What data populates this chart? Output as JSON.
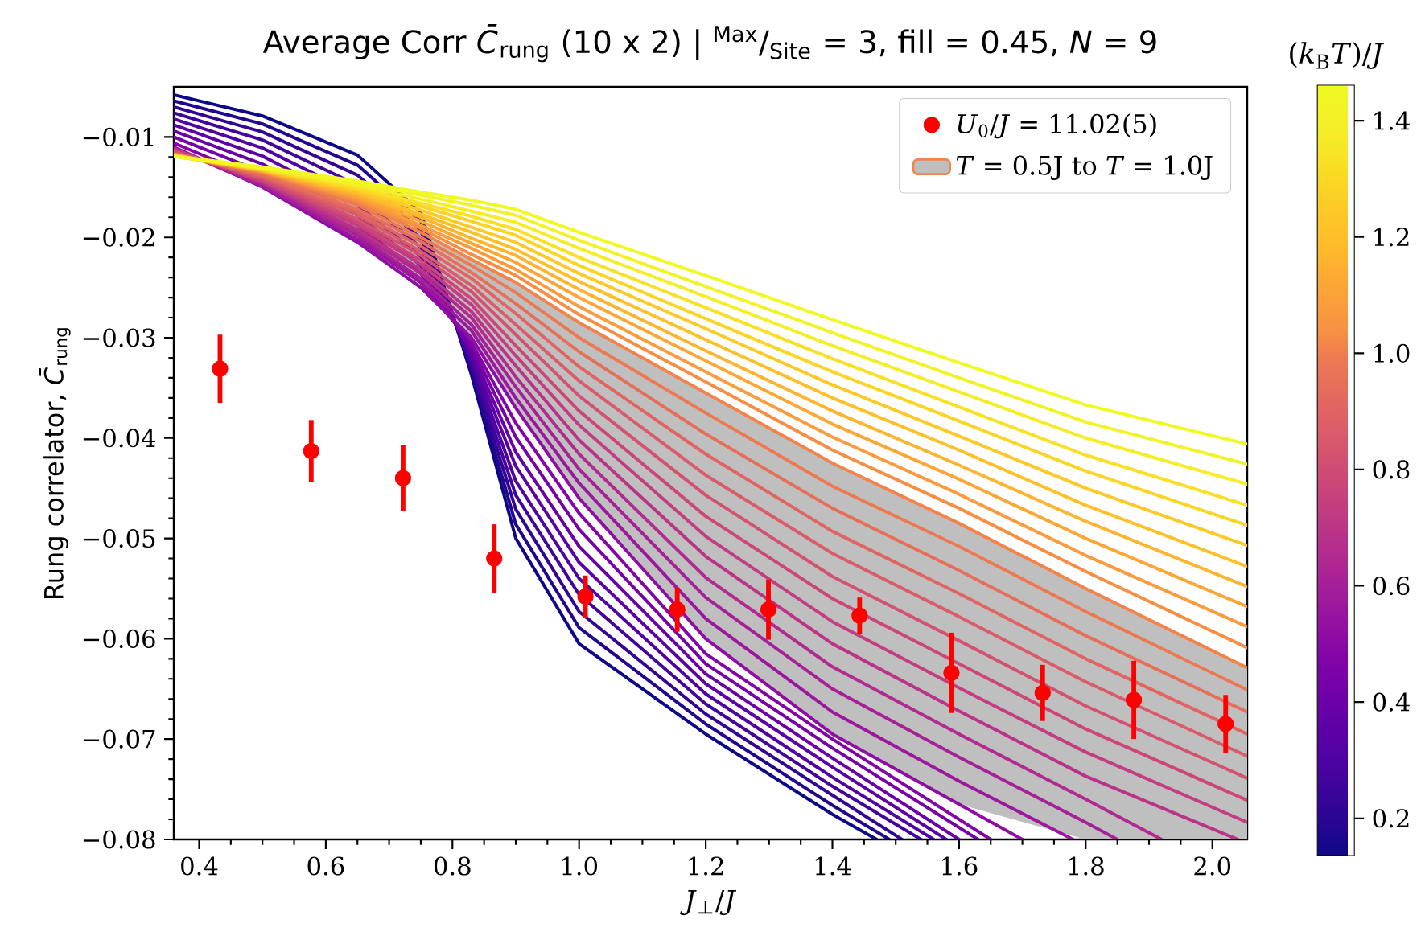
{
  "chart_data": {
    "type": "line",
    "title": "Average Corr *C̄*$_{rung}$ (10 x 2) | $^{Max}$/$_{Site}$ = 3, fill = 0.45, *N* = 9",
    "xlabel": "*J*$_{⊥}$/*J*",
    "ylabel": "Rung correlator, *C̄*$_{rung}$",
    "clabel": "(*k*$_{B}$*T*)/*J*",
    "xlim": [
      0.36,
      2.055
    ],
    "ylim": [
      -0.08,
      -0.005
    ],
    "xticks": [
      {
        "value": 0.4,
        "label": "0.4"
      },
      {
        "value": 0.6,
        "label": "0.6"
      },
      {
        "value": 0.8,
        "label": "0.8"
      },
      {
        "value": 1.0,
        "label": "1.0"
      },
      {
        "value": 1.2,
        "label": "1.2"
      },
      {
        "value": 1.4,
        "label": "1.4"
      },
      {
        "value": 1.6,
        "label": "1.6"
      },
      {
        "value": 1.8,
        "label": "1.8"
      },
      {
        "value": 2.0,
        "label": "2.0"
      }
    ],
    "yticks": [
      {
        "value": -0.08,
        "label": "−0.08"
      },
      {
        "value": -0.07,
        "label": "−0.07"
      },
      {
        "value": -0.06,
        "label": "−0.06"
      },
      {
        "value": -0.05,
        "label": "−0.05"
      },
      {
        "value": -0.04,
        "label": "−0.04"
      },
      {
        "value": -0.03,
        "label": "−0.03"
      },
      {
        "value": -0.02,
        "label": "−0.02"
      },
      {
        "value": -0.01,
        "label": "−0.01"
      }
    ],
    "clim": [
      0.136,
      1.461
    ],
    "cticks": [
      {
        "value": 0.2,
        "label": "0.2"
      },
      {
        "value": 0.4,
        "label": "0.4"
      },
      {
        "value": 0.6,
        "label": "0.6"
      },
      {
        "value": 0.8,
        "label": "0.8"
      },
      {
        "value": 1.0,
        "label": "1.0"
      },
      {
        "value": 1.2,
        "label": "1.2"
      },
      {
        "value": 1.4,
        "label": "1.4"
      }
    ],
    "legend": "top right",
    "series": [
      {
        "color": "#0d0887",
        "x": [
          0.36,
          0.5,
          0.65,
          0.75,
          0.83,
          0.9,
          1.0,
          1.2,
          1.4,
          1.47
        ],
        "values": [
          -0.0058,
          -0.0079,
          -0.0118,
          -0.0175,
          -0.0337,
          -0.05,
          -0.0605,
          -0.0695,
          -0.0775,
          -0.08
        ]
      },
      {
        "color": "#220690",
        "x": [
          0.36,
          0.5,
          0.65,
          0.75,
          0.83,
          0.9,
          1.0,
          1.2,
          1.4,
          1.49
        ],
        "values": [
          -0.0064,
          -0.0087,
          -0.0128,
          -0.0184,
          -0.0333,
          -0.0486,
          -0.0589,
          -0.0685,
          -0.0766,
          -0.08
        ]
      },
      {
        "color": "#330597",
        "x": [
          0.36,
          0.5,
          0.65,
          0.75,
          0.83,
          0.9,
          1.0,
          1.2,
          1.4,
          1.51
        ],
        "values": [
          -0.007,
          -0.0095,
          -0.0138,
          -0.0193,
          -0.0329,
          -0.0471,
          -0.0573,
          -0.0675,
          -0.0756,
          -0.08
        ]
      },
      {
        "color": "#41049d",
        "x": [
          0.36,
          0.5,
          0.65,
          0.75,
          0.83,
          0.9,
          1.0,
          1.2,
          1.4,
          1.54
        ],
        "values": [
          -0.0076,
          -0.0103,
          -0.0148,
          -0.0201,
          -0.0325,
          -0.0457,
          -0.0556,
          -0.0665,
          -0.0747,
          -0.08
        ]
      },
      {
        "color": "#5002a2",
        "x": [
          0.36,
          0.5,
          0.65,
          0.75,
          0.83,
          0.9,
          1.0,
          1.2,
          1.4,
          1.56
        ],
        "values": [
          -0.0082,
          -0.0111,
          -0.0158,
          -0.021,
          -0.0321,
          -0.0443,
          -0.054,
          -0.0655,
          -0.0738,
          -0.08
        ]
      },
      {
        "color": "#5c01a6",
        "x": [
          0.36,
          0.5,
          0.65,
          0.75,
          0.83,
          0.9,
          1.0,
          1.2,
          1.4,
          1.58
        ],
        "values": [
          -0.0088,
          -0.0119,
          -0.0168,
          -0.0219,
          -0.0317,
          -0.0428,
          -0.0524,
          -0.0645,
          -0.0728,
          -0.08
        ]
      },
      {
        "color": "#6a00a8",
        "x": [
          0.36,
          0.5,
          0.65,
          0.75,
          0.83,
          0.9,
          1.0,
          1.2,
          1.4,
          1.6
        ],
        "values": [
          -0.0094,
          -0.0127,
          -0.0178,
          -0.0228,
          -0.0313,
          -0.0414,
          -0.0508,
          -0.0635,
          -0.0719,
          -0.08
        ]
      },
      {
        "color": "#7701a8",
        "x": [
          0.36,
          0.5,
          0.65,
          0.75,
          0.83,
          0.9,
          1.0,
          1.2,
          1.4,
          1.63
        ],
        "values": [
          -0.01,
          -0.0135,
          -0.0188,
          -0.0236,
          -0.0309,
          -0.0399,
          -0.0491,
          -0.0625,
          -0.0709,
          -0.08
        ]
      },
      {
        "color": "#8405a7",
        "x": [
          0.36,
          0.5,
          0.65,
          0.75,
          0.83,
          0.9,
          1.0,
          1.2,
          1.4,
          1.65
        ],
        "values": [
          -0.0106,
          -0.0143,
          -0.0198,
          -0.0245,
          -0.0305,
          -0.0385,
          -0.0475,
          -0.0615,
          -0.07,
          -0.08
        ]
      },
      {
        "color": "#8f0da4",
        "x": [
          0.36,
          0.5,
          0.65,
          0.75,
          0.83,
          0.9,
          1.0,
          1.2,
          1.4,
          1.6,
          1.7
        ],
        "values": [
          -0.011,
          -0.015,
          -0.0205,
          -0.025,
          -0.03,
          -0.037,
          -0.046,
          -0.06,
          -0.0695,
          -0.0765,
          -0.08
        ]
      },
      {
        "color": "#9c179e",
        "x": [
          0.36,
          0.5,
          0.65,
          0.75,
          0.83,
          0.9,
          1.0,
          1.2,
          1.4,
          1.6,
          1.78
        ],
        "values": [
          -0.0111,
          -0.0149,
          -0.0202,
          -0.0245,
          -0.0293,
          -0.036,
          -0.0445,
          -0.058,
          -0.0673,
          -0.0742,
          -0.08
        ]
      },
      {
        "color": "#a62098",
        "x": [
          0.36,
          0.5,
          0.65,
          0.75,
          0.83,
          0.9,
          1.0,
          1.2,
          1.4,
          1.6,
          1.8,
          1.85
        ],
        "values": [
          -0.0111,
          -0.0148,
          -0.0198,
          -0.0241,
          -0.0287,
          -0.0349,
          -0.0431,
          -0.0559,
          -0.065,
          -0.0718,
          -0.0783,
          -0.08
        ]
      },
      {
        "color": "#b12a90",
        "x": [
          0.36,
          0.5,
          0.65,
          0.75,
          0.83,
          0.9,
          1.0,
          1.2,
          1.4,
          1.6,
          1.8,
          1.92
        ],
        "values": [
          -0.0112,
          -0.0146,
          -0.0195,
          -0.0236,
          -0.028,
          -0.0339,
          -0.0416,
          -0.0539,
          -0.0628,
          -0.0695,
          -0.076,
          -0.08
        ]
      },
      {
        "color": "#ba3388",
        "x": [
          0.36,
          0.5,
          0.65,
          0.75,
          0.83,
          0.9,
          1.0,
          1.2,
          1.4,
          1.6,
          1.8,
          2.04
        ],
        "values": [
          -0.0112,
          -0.0145,
          -0.0192,
          -0.0232,
          -0.0274,
          -0.0328,
          -0.0402,
          -0.0518,
          -0.0605,
          -0.0672,
          -0.0737,
          -0.08
        ]
      },
      {
        "color": "#c33d80",
        "x": [
          0.36,
          0.5,
          0.65,
          0.75,
          0.83,
          0.9,
          1.0,
          1.2,
          1.4,
          1.6,
          1.8,
          2.055
        ],
        "values": [
          -0.0113,
          -0.0144,
          -0.0188,
          -0.0227,
          -0.0267,
          -0.0318,
          -0.0387,
          -0.0498,
          -0.0583,
          -0.0649,
          -0.0713,
          -0.0783
        ]
      },
      {
        "color": "#cc4778",
        "x": [
          0.36,
          0.5,
          0.65,
          0.75,
          0.83,
          0.9,
          1.0,
          1.2,
          1.4,
          1.6,
          1.8,
          2.055
        ],
        "values": [
          -0.0114,
          -0.0143,
          -0.0185,
          -0.0223,
          -0.0261,
          -0.0308,
          -0.0373,
          -0.0478,
          -0.056,
          -0.0625,
          -0.069,
          -0.0761
        ]
      },
      {
        "color": "#d35171",
        "x": [
          0.36,
          0.5,
          0.65,
          0.75,
          0.83,
          0.9,
          1.0,
          1.2,
          1.4,
          1.6,
          1.8,
          2.055
        ],
        "values": [
          -0.0115,
          -0.0141,
          -0.0182,
          -0.0218,
          -0.0254,
          -0.0297,
          -0.0358,
          -0.0457,
          -0.0538,
          -0.0602,
          -0.0667,
          -0.0739
        ]
      },
      {
        "color": "#da5b69",
        "x": [
          0.36,
          0.5,
          0.65,
          0.75,
          0.83,
          0.9,
          1.0,
          1.2,
          1.4,
          1.6,
          1.8,
          2.055
        ],
        "values": [
          -0.0115,
          -0.014,
          -0.0178,
          -0.0214,
          -0.0248,
          -0.0287,
          -0.0343,
          -0.0437,
          -0.0515,
          -0.0578,
          -0.0643,
          -0.0717
        ]
      },
      {
        "color": "#e16462",
        "x": [
          0.36,
          0.5,
          0.65,
          0.75,
          0.83,
          0.9,
          1.0,
          1.2,
          1.4,
          1.6,
          1.8,
          2.055
        ],
        "values": [
          -0.0116,
          -0.0139,
          -0.0175,
          -0.0209,
          -0.0241,
          -0.0276,
          -0.0329,
          -0.0416,
          -0.0493,
          -0.0555,
          -0.062,
          -0.0695
        ]
      },
      {
        "color": "#e76f5a",
        "x": [
          0.36,
          0.5,
          0.65,
          0.75,
          0.83,
          0.9,
          1.0,
          1.2,
          1.4,
          1.6,
          1.8,
          2.055
        ],
        "values": [
          -0.0117,
          -0.0138,
          -0.0172,
          -0.0204,
          -0.0235,
          -0.0266,
          -0.0314,
          -0.0396,
          -0.047,
          -0.0532,
          -0.0597,
          -0.0673
        ]
      },
      {
        "color": "#ed7953",
        "x": [
          0.36,
          0.5,
          0.65,
          0.75,
          0.83,
          0.9,
          1.0,
          1.2,
          1.4,
          1.6,
          1.8,
          2.055
        ],
        "values": [
          -0.0117,
          -0.0136,
          -0.0168,
          -0.02,
          -0.0228,
          -0.0255,
          -0.03,
          -0.0375,
          -0.0448,
          -0.0508,
          -0.0573,
          -0.0651
        ]
      },
      {
        "name": "*T* = 0.5J to *T* = 1.0J",
        "color": "#f2844b",
        "x": [
          0.36,
          0.5,
          0.65,
          0.75,
          0.83,
          0.9,
          1.0,
          1.2,
          1.4,
          1.6,
          1.8,
          2.055
        ],
        "values": [
          -0.0118,
          -0.0135,
          -0.0165,
          -0.0195,
          -0.0222,
          -0.0245,
          -0.0285,
          -0.0355,
          -0.0425,
          -0.0485,
          -0.055,
          -0.0629
        ],
        "upper": [
          -0.0118,
          -0.0135,
          -0.0165,
          -0.0195,
          -0.0222,
          -0.0245,
          -0.0285,
          -0.0355,
          -0.0425,
          -0.0485,
          -0.055,
          -0.0629
        ],
        "lower": [
          -0.011,
          -0.015,
          -0.0205,
          -0.025,
          -0.03,
          -0.037,
          -0.046,
          -0.06,
          -0.0695,
          -0.0765,
          -0.08,
          -0.08
        ]
      },
      {
        "color": "#f68f44",
        "x": [
          0.36,
          0.5,
          0.65,
          0.75,
          0.83,
          0.9,
          1.0,
          1.2,
          1.4,
          1.6,
          1.8,
          2.055
        ],
        "values": [
          -0.0118,
          -0.0135,
          -0.0163,
          -0.0191,
          -0.0217,
          -0.0238,
          -0.0277,
          -0.0344,
          -0.0412,
          -0.047,
          -0.0533,
          -0.0609
        ]
      },
      {
        "color": "#fa9b3d",
        "x": [
          0.36,
          0.5,
          0.65,
          0.75,
          0.83,
          0.9,
          1.0,
          1.2,
          1.4,
          1.6,
          1.8,
          2.055
        ],
        "values": [
          -0.0118,
          -0.0134,
          -0.0161,
          -0.0188,
          -0.0211,
          -0.0232,
          -0.0269,
          -0.0334,
          -0.0399,
          -0.0456,
          -0.0517,
          -0.0588
        ]
      },
      {
        "color": "#fca636",
        "x": [
          0.36,
          0.5,
          0.65,
          0.75,
          0.83,
          0.9,
          1.0,
          1.2,
          1.4,
          1.6,
          1.8,
          2.055
        ],
        "values": [
          -0.0118,
          -0.0134,
          -0.0159,
          -0.0184,
          -0.0206,
          -0.0225,
          -0.026,
          -0.0323,
          -0.0386,
          -0.0441,
          -0.05,
          -0.0568
        ]
      },
      {
        "color": "#fdb42f",
        "x": [
          0.36,
          0.5,
          0.65,
          0.75,
          0.83,
          0.9,
          1.0,
          1.2,
          1.4,
          1.6,
          1.8,
          2.055
        ],
        "values": [
          -0.0118,
          -0.0133,
          -0.0157,
          -0.018,
          -0.0201,
          -0.0218,
          -0.0252,
          -0.0313,
          -0.0373,
          -0.0427,
          -0.0483,
          -0.0548
        ]
      },
      {
        "color": "#fec029",
        "x": [
          0.36,
          0.5,
          0.65,
          0.75,
          0.83,
          0.9,
          1.0,
          1.2,
          1.4,
          1.6,
          1.8,
          2.055
        ],
        "values": [
          -0.0118,
          -0.0133,
          -0.0155,
          -0.0177,
          -0.0195,
          -0.0212,
          -0.0244,
          -0.0302,
          -0.036,
          -0.0412,
          -0.0467,
          -0.0528
        ]
      },
      {
        "color": "#fdc926",
        "x": [
          0.36,
          0.5,
          0.65,
          0.75,
          0.83,
          0.9,
          1.0,
          1.2,
          1.4,
          1.6,
          1.8,
          2.055
        ],
        "values": [
          -0.0119,
          -0.0133,
          -0.0153,
          -0.0173,
          -0.019,
          -0.0205,
          -0.0236,
          -0.0291,
          -0.0347,
          -0.0398,
          -0.045,
          -0.0507
        ]
      },
      {
        "color": "#fbd524",
        "x": [
          0.36,
          0.5,
          0.65,
          0.75,
          0.83,
          0.9,
          1.0,
          1.2,
          1.4,
          1.6,
          1.8,
          2.055
        ],
        "values": [
          -0.0119,
          -0.0132,
          -0.0152,
          -0.0169,
          -0.0184,
          -0.0198,
          -0.0228,
          -0.0281,
          -0.0334,
          -0.0383,
          -0.0433,
          -0.0487
        ]
      },
      {
        "color": "#f8e125",
        "x": [
          0.36,
          0.5,
          0.65,
          0.75,
          0.83,
          0.9,
          1.0,
          1.2,
          1.4,
          1.6,
          1.8,
          2.055
        ],
        "values": [
          -0.0119,
          -0.0132,
          -0.015,
          -0.0166,
          -0.0179,
          -0.0192,
          -0.022,
          -0.027,
          -0.0321,
          -0.0369,
          -0.0417,
          -0.0467
        ]
      },
      {
        "color": "#f5ed27",
        "x": [
          0.36,
          0.5,
          0.65,
          0.75,
          0.83,
          0.9,
          1.0,
          1.2,
          1.4,
          1.6,
          1.8,
          2.055
        ],
        "values": [
          -0.0119,
          -0.0131,
          -0.0148,
          -0.0162,
          -0.0174,
          -0.0185,
          -0.0211,
          -0.0259,
          -0.0308,
          -0.0354,
          -0.04,
          -0.0446
        ]
      },
      {
        "color": "#f2f326",
        "x": [
          0.36,
          0.5,
          0.65,
          0.75,
          0.83,
          0.9,
          1.0,
          1.2,
          1.4,
          1.6,
          1.8,
          2.055
        ],
        "values": [
          -0.0119,
          -0.0131,
          -0.0146,
          -0.0158,
          -0.0168,
          -0.0178,
          -0.0203,
          -0.0249,
          -0.0295,
          -0.034,
          -0.0384,
          -0.0426
        ]
      },
      {
        "color": "#f0f921",
        "x": [
          0.36,
          0.5,
          0.65,
          0.75,
          0.83,
          0.9,
          1.0,
          1.2,
          1.4,
          1.6,
          1.8,
          2.055
        ],
        "values": [
          -0.0119,
          -0.013,
          -0.0144,
          -0.0155,
          -0.0163,
          -0.0172,
          -0.0195,
          -0.0238,
          -0.0282,
          -0.0325,
          -0.0367,
          -0.0406
        ]
      },
      {
        "type": "scatter",
        "name": "*U*$_{0}$/*J* = 11.02(5)",
        "color": "#ff0000",
        "marker": "circle",
        "x": [
          0.433,
          0.577,
          0.722,
          0.866,
          1.01,
          1.155,
          1.299,
          1.443,
          1.588,
          1.732,
          1.876,
          2.021
        ],
        "values": [
          -0.0331,
          -0.0413,
          -0.044,
          -0.052,
          -0.0558,
          -0.0571,
          -0.0571,
          -0.0577,
          -0.0634,
          -0.0654,
          -0.0661,
          -0.0685
        ],
        "errors": [
          0.0034,
          0.0031,
          0.0033,
          0.0034,
          0.0021,
          0.0022,
          0.003,
          0.0018,
          0.004,
          0.0028,
          0.0039,
          0.0029
        ]
      }
    ]
  }
}
